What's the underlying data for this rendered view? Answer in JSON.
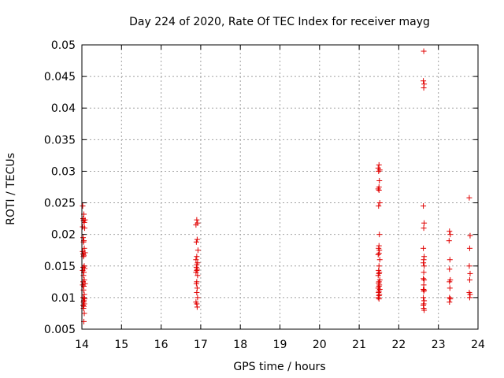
{
  "chart_data": {
    "type": "scatter",
    "title": "Day 224 of 2020, Rate Of TEC Index for receiver mayg",
    "xlabel": "GPS time / hours",
    "ylabel": "ROTI / TECUs",
    "xlim": [
      14,
      24
    ],
    "ylim": [
      0.005,
      0.05
    ],
    "xticks": [
      "14",
      "15",
      "16",
      "17",
      "18",
      "19",
      "20",
      "21",
      "22",
      "23",
      "24"
    ],
    "yticks": [
      "0.005",
      "0.01",
      "0.015",
      "0.02",
      "0.025",
      "0.03",
      "0.035",
      "0.04",
      "0.045",
      "0.05"
    ],
    "grid": true,
    "marker": "+",
    "color": "#e00000",
    "series": [
      {
        "x": [
          14.02,
          14.05,
          14.03,
          14.08,
          14.04,
          14.06,
          14.02,
          14.07,
          14.03,
          14.05,
          14.04,
          14.06,
          14.02,
          14.08,
          14.03,
          14.05,
          14.04,
          14.06,
          14.03,
          14.07,
          14.02,
          14.05,
          14.04,
          14.06,
          14.03,
          14.08,
          14.02,
          14.05,
          14.04,
          14.06,
          14.03,
          14.07,
          14.05,
          14.04,
          14.06,
          14.03,
          14.05,
          14.04,
          14.06,
          14.05
        ],
        "y": [
          0.0245,
          0.0232,
          0.0225,
          0.0223,
          0.0222,
          0.0219,
          0.0212,
          0.021,
          0.0195,
          0.019,
          0.0188,
          0.0178,
          0.0173,
          0.0171,
          0.0169,
          0.0167,
          0.0165,
          0.015,
          0.0148,
          0.0146,
          0.0143,
          0.014,
          0.0135,
          0.0128,
          0.0125,
          0.0122,
          0.012,
          0.0118,
          0.0112,
          0.0105,
          0.01,
          0.0098,
          0.0095,
          0.0093,
          0.009,
          0.0088,
          0.0086,
          0.0083,
          0.0075,
          0.0062
        ]
      },
      {
        "x": [
          16.9,
          16.92,
          16.88,
          16.91,
          16.89,
          16.93,
          16.9,
          16.88,
          16.92,
          16.9,
          16.89,
          16.91,
          16.9,
          16.88,
          16.92,
          16.9,
          16.89,
          16.91,
          16.9,
          16.92,
          16.88,
          16.9,
          16.91
        ],
        "y": [
          0.0223,
          0.0218,
          0.0215,
          0.0192,
          0.0188,
          0.0175,
          0.0165,
          0.016,
          0.0155,
          0.0152,
          0.0148,
          0.0145,
          0.0143,
          0.014,
          0.0135,
          0.0125,
          0.0122,
          0.0115,
          0.0108,
          0.01,
          0.0093,
          0.009,
          0.0085
        ]
      },
      {
        "x": [
          21.5,
          21.48,
          21.52,
          21.49,
          21.51,
          21.5,
          21.48,
          21.5,
          21.52,
          21.49,
          21.51,
          21.5,
          21.49,
          21.51,
          21.5,
          21.48,
          21.52,
          21.5,
          21.49,
          21.51,
          21.5,
          21.48,
          21.52,
          21.5,
          21.49,
          21.51,
          21.5,
          21.48,
          21.52,
          21.5,
          21.49,
          21.51,
          21.5,
          21.48,
          21.5
        ],
        "y": [
          0.031,
          0.0305,
          0.0302,
          0.03,
          0.0285,
          0.0275,
          0.0272,
          0.027,
          0.025,
          0.0245,
          0.02,
          0.0182,
          0.0178,
          0.0175,
          0.017,
          0.0168,
          0.016,
          0.015,
          0.0143,
          0.014,
          0.0138,
          0.0135,
          0.0128,
          0.0125,
          0.0123,
          0.012,
          0.0118,
          0.0115,
          0.0113,
          0.011,
          0.0108,
          0.0105,
          0.0103,
          0.01,
          0.0098
        ]
      },
      {
        "x": [
          22.63,
          22.62,
          22.64,
          22.63,
          22.62,
          22.64,
          22.63,
          22.62,
          22.64,
          22.63,
          22.62,
          22.64,
          22.63,
          22.62,
          22.64,
          22.63,
          22.62,
          22.64,
          22.63,
          22.62,
          22.64,
          22.63,
          22.62,
          22.63,
          22.64
        ],
        "y": [
          0.049,
          0.0443,
          0.0438,
          0.0432,
          0.0245,
          0.0218,
          0.021,
          0.0178,
          0.0165,
          0.016,
          0.0155,
          0.015,
          0.014,
          0.013,
          0.0128,
          0.012,
          0.0113,
          0.0112,
          0.011,
          0.01,
          0.0095,
          0.009,
          0.0088,
          0.0083,
          0.008
        ]
      },
      {
        "x": [
          23.28,
          23.3,
          23.27,
          23.29,
          23.28,
          23.3,
          23.28,
          23.29,
          23.28,
          23.3,
          23.28
        ],
        "y": [
          0.0205,
          0.02,
          0.019,
          0.016,
          0.0145,
          0.0128,
          0.0125,
          0.0115,
          0.01,
          0.0098,
          0.0093
        ]
      },
      {
        "x": [
          23.78,
          23.8,
          23.79,
          23.78,
          23.8,
          23.79,
          23.78,
          23.8,
          23.79
        ],
        "y": [
          0.0258,
          0.0198,
          0.0178,
          0.015,
          0.0138,
          0.0128,
          0.0108,
          0.0105,
          0.01
        ]
      }
    ]
  }
}
